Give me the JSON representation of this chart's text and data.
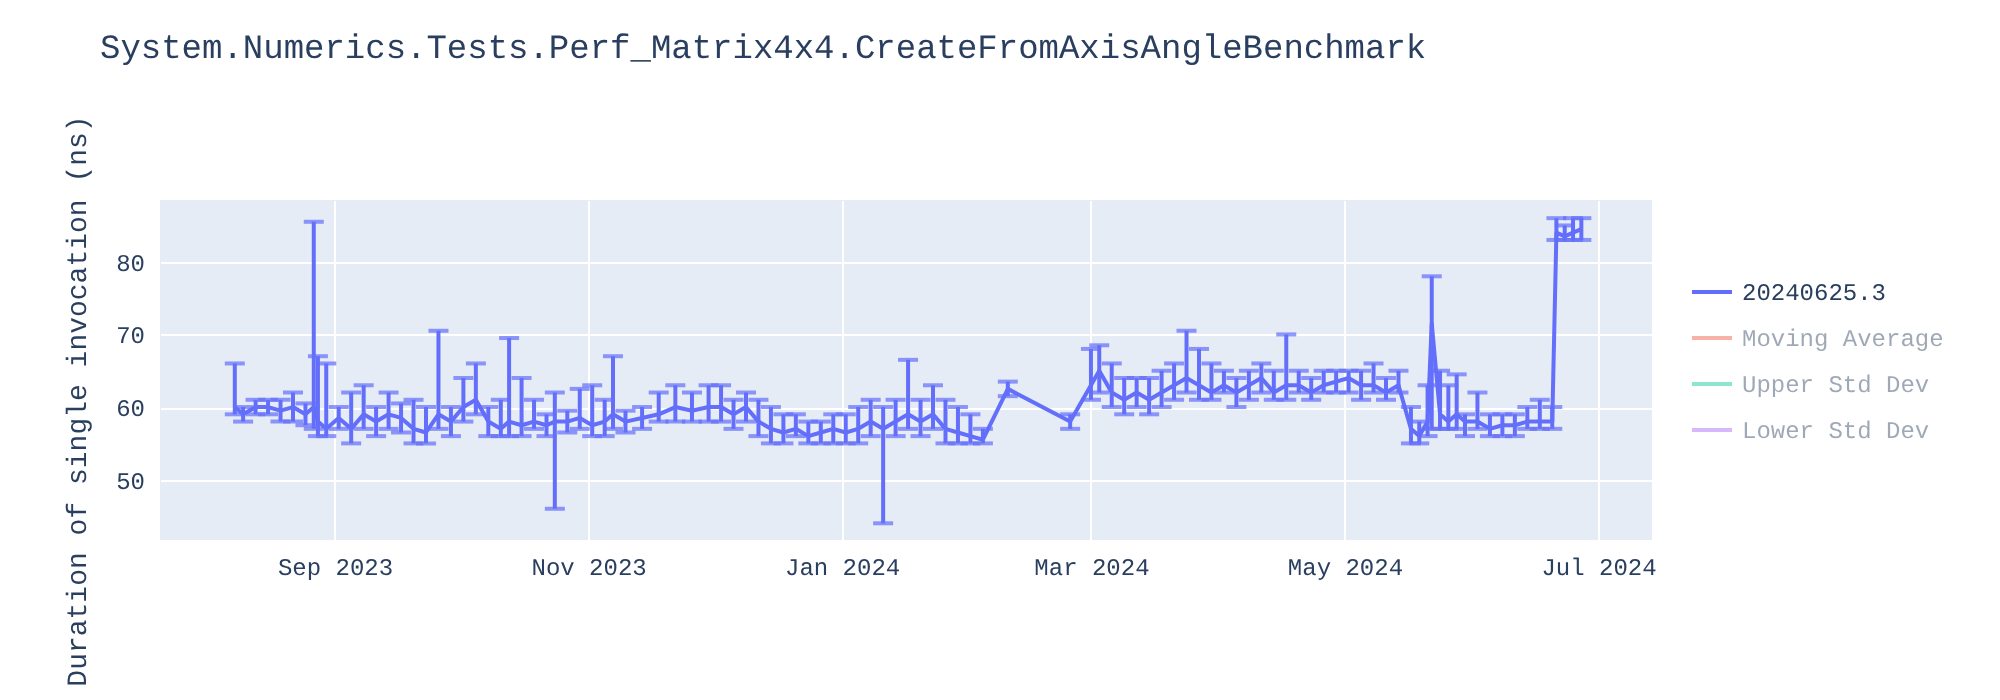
{
  "chart_data": {
    "type": "line",
    "title": "System.Numerics.Tests.Perf_Matrix4x4.CreateFromAxisAngleBenchmark",
    "ylabel": "Duration of single invocation (ns)",
    "xlim": [
      "2023-07-21",
      "2024-07-14"
    ],
    "xticks": [
      {
        "value": "2023-09-01",
        "label": "Sep 2023"
      },
      {
        "value": "2023-11-01",
        "label": "Nov 2023"
      },
      {
        "value": "2024-01-01",
        "label": "Jan 2024"
      },
      {
        "value": "2024-03-01",
        "label": "Mar 2024"
      },
      {
        "value": "2024-05-01",
        "label": "May 2024"
      },
      {
        "value": "2024-07-01",
        "label": "Jul 2024"
      }
    ],
    "ylim": [
      41.7,
      88.5
    ],
    "yticks": [
      50,
      60,
      70,
      80
    ],
    "grid": true,
    "legend": "top right",
    "series": [
      {
        "name": "20240625.3",
        "color": "#636efa",
        "x": [
          "2023-08-08",
          "2023-08-10",
          "2023-08-13",
          "2023-08-16",
          "2023-08-19",
          "2023-08-22",
          "2023-08-25",
          "2023-08-27",
          "2023-08-28",
          "2023-08-30",
          "2023-09-02",
          "2023-09-05",
          "2023-09-08",
          "2023-09-11",
          "2023-09-14",
          "2023-09-17",
          "2023-09-20",
          "2023-09-23",
          "2023-09-26",
          "2023-09-29",
          "2023-10-02",
          "2023-10-05",
          "2023-10-08",
          "2023-10-11",
          "2023-10-13",
          "2023-10-16",
          "2023-10-19",
          "2023-10-22",
          "2023-10-24",
          "2023-10-27",
          "2023-10-30",
          "2023-11-02",
          "2023-11-05",
          "2023-11-07",
          "2023-11-10",
          "2023-11-14",
          "2023-11-18",
          "2023-11-22",
          "2023-11-26",
          "2023-11-30",
          "2023-12-03",
          "2023-12-06",
          "2023-12-09",
          "2023-12-12",
          "2023-12-15",
          "2023-12-18",
          "2023-12-21",
          "2023-12-24",
          "2023-12-27",
          "2023-12-30",
          "2024-01-02",
          "2024-01-05",
          "2024-01-08",
          "2024-01-11",
          "2024-01-14",
          "2024-01-17",
          "2024-01-20",
          "2024-01-23",
          "2024-01-26",
          "2024-01-29",
          "2024-02-01",
          "2024-02-04",
          "2024-02-10",
          "2024-02-25",
          "2024-03-01",
          "2024-03-03",
          "2024-03-06",
          "2024-03-09",
          "2024-03-12",
          "2024-03-15",
          "2024-03-18",
          "2024-03-21",
          "2024-03-24",
          "2024-03-27",
          "2024-03-30",
          "2024-04-02",
          "2024-04-05",
          "2024-04-08",
          "2024-04-11",
          "2024-04-14",
          "2024-04-17",
          "2024-04-20",
          "2024-04-23",
          "2024-04-26",
          "2024-04-29",
          "2024-05-02",
          "2024-05-05",
          "2024-05-08",
          "2024-05-11",
          "2024-05-14",
          "2024-05-17",
          "2024-05-19",
          "2024-05-21",
          "2024-05-22",
          "2024-05-24",
          "2024-05-26",
          "2024-05-28",
          "2024-05-30",
          "2024-06-02",
          "2024-06-05",
          "2024-06-08",
          "2024-06-11",
          "2024-06-14",
          "2024-06-17",
          "2024-06-20",
          "2024-06-21",
          "2024-06-23",
          "2024-06-25",
          "2024-06-27"
        ],
        "values": [
          60,
          59,
          60,
          60,
          59.5,
          60,
          59,
          60,
          58,
          57,
          58.5,
          57,
          59,
          58,
          59,
          58.5,
          57,
          56.5,
          59,
          58,
          60,
          61,
          58,
          57,
          58,
          57.5,
          58,
          57.5,
          58,
          58,
          58.5,
          57.5,
          58,
          59,
          58,
          58.5,
          59,
          60,
          59.5,
          60,
          60,
          59,
          60,
          58,
          57,
          56.5,
          57,
          56,
          56.5,
          57,
          56.5,
          57,
          58,
          57,
          58,
          59,
          58,
          59,
          57,
          56.5,
          56,
          55.5,
          62.5,
          58,
          63,
          65,
          62,
          61,
          62,
          61,
          62,
          63,
          64,
          63,
          62,
          63,
          62,
          63,
          64,
          62,
          63,
          63,
          62,
          63,
          63.5,
          64,
          63,
          63,
          62,
          63,
          57,
          56,
          58,
          71.5,
          59,
          58,
          59,
          58,
          58,
          57,
          57.5,
          57.5,
          58,
          58,
          58,
          84,
          83.5,
          84,
          84.5
        ],
        "errors": [
          [
            59,
            66
          ],
          1,
          1,
          1,
          1.5,
          2,
          1.5,
          [
            57,
            85.5
          ],
          [
            56,
            67
          ],
          [
            56,
            66
          ],
          1.5,
          [
            55,
            62
          ],
          [
            57,
            63
          ],
          2,
          [
            57,
            62
          ],
          2,
          [
            55,
            61
          ],
          [
            55,
            60
          ],
          [
            57,
            70.5
          ],
          2,
          [
            58,
            64
          ],
          [
            59,
            66
          ],
          2,
          [
            56,
            61
          ],
          [
            56,
            69.5
          ],
          [
            56,
            64
          ],
          [
            57,
            61
          ],
          1.5,
          [
            46,
            62
          ],
          1.5,
          [
            57,
            62.5
          ],
          [
            56,
            63
          ],
          [
            56,
            61
          ],
          [
            57,
            67
          ],
          1.5,
          1.5,
          [
            58,
            62
          ],
          [
            58,
            63
          ],
          [
            58,
            62
          ],
          [
            58,
            63
          ],
          [
            58,
            63
          ],
          [
            57,
            61
          ],
          [
            58,
            62
          ],
          [
            56,
            61
          ],
          [
            55,
            60
          ],
          [
            55,
            59
          ],
          [
            56,
            59
          ],
          [
            55,
            58
          ],
          [
            55,
            58
          ],
          [
            55,
            59
          ],
          [
            55,
            59
          ],
          [
            55,
            60
          ],
          [
            56,
            61
          ],
          [
            44,
            60
          ],
          [
            56,
            61
          ],
          [
            57,
            66.5
          ],
          [
            56,
            61
          ],
          [
            57,
            63
          ],
          [
            55,
            61
          ],
          [
            55,
            60
          ],
          [
            55,
            59
          ],
          [
            55,
            57
          ],
          1,
          [
            57,
            59
          ],
          [
            61,
            68
          ],
          [
            62,
            68.5
          ],
          [
            60,
            66
          ],
          [
            59,
            64
          ],
          [
            60,
            64
          ],
          [
            59,
            64
          ],
          [
            60,
            65
          ],
          [
            61,
            66
          ],
          [
            62,
            70.5
          ],
          [
            61,
            68
          ],
          [
            61,
            66
          ],
          [
            62,
            65
          ],
          [
            60,
            64
          ],
          [
            61,
            65
          ],
          [
            62,
            66
          ],
          [
            61,
            65
          ],
          [
            61,
            70
          ],
          [
            62,
            65
          ],
          [
            61,
            64
          ],
          [
            62,
            65
          ],
          [
            62,
            65
          ],
          [
            62,
            65
          ],
          [
            61,
            65
          ],
          [
            62,
            66
          ],
          [
            61,
            64
          ],
          [
            62,
            65
          ],
          [
            55,
            60
          ],
          [
            55,
            58
          ],
          [
            56,
            63
          ],
          [
            57,
            78
          ],
          [
            57,
            65
          ],
          [
            57,
            63
          ],
          [
            57,
            64.5
          ],
          [
            56,
            59
          ],
          [
            57,
            62
          ],
          [
            56,
            59
          ],
          [
            56,
            59
          ],
          [
            56,
            59
          ],
          [
            57,
            60
          ],
          [
            57,
            61
          ],
          [
            57,
            60
          ],
          [
            83,
            86
          ],
          [
            83,
            85
          ],
          [
            83,
            86
          ],
          [
            83,
            86
          ]
        ]
      },
      {
        "name": "Moving Average",
        "color": "#ef553b"
      },
      {
        "name": "Upper Std Dev",
        "color": "#00cc96"
      },
      {
        "name": "Lower Std Dev",
        "color": "#ab63fa"
      }
    ]
  }
}
